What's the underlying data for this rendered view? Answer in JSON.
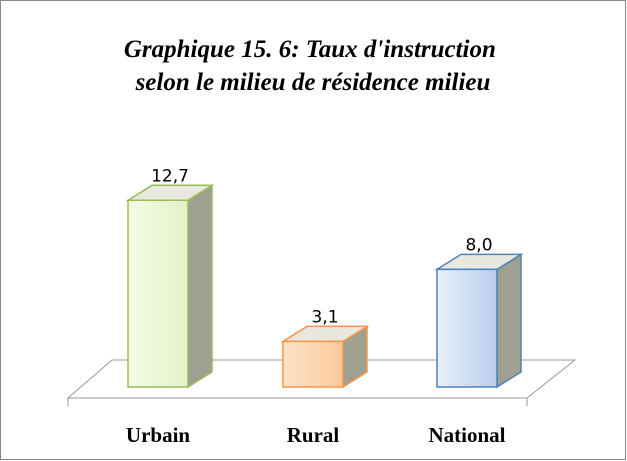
{
  "chart_data": {
    "type": "bar3d",
    "title": [
      "Graphique 15. 6: Taux d'instruction",
      "selon le milieu de résidence milieu"
    ],
    "categories": [
      "Urbain",
      "Rural",
      "National"
    ],
    "values": [
      12.7,
      3.1,
      8.0
    ],
    "value_labels": [
      "12,7",
      "3,1",
      "8,0"
    ],
    "colors": [
      "#9bbb59",
      "#f79646",
      "#4f81bd"
    ]
  }
}
